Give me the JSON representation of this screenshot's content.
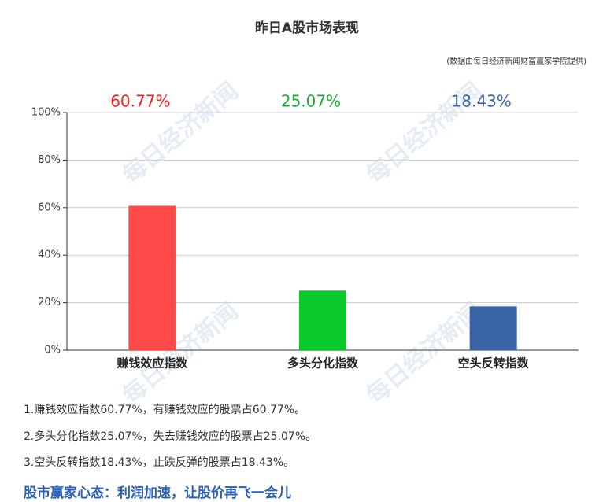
{
  "chart_data": {
    "type": "bar",
    "title": "昨日A股市场表现",
    "subtitle": "(数据由每日经济新闻财富赢家学院提供)",
    "categories": [
      "赚钱效应指数",
      "多头分化指数",
      "空头反转指数"
    ],
    "values": [
      60.77,
      25.07,
      18.43
    ],
    "value_labels": [
      "60.77%",
      "25.07%",
      "18.43%"
    ],
    "colors": [
      "#ff4a4a",
      "#0ac92b",
      "#3a64a8"
    ],
    "label_colors": [
      "#ff1a1a",
      "#1aab3a",
      "#3a64a8"
    ],
    "ylim": [
      0,
      100
    ],
    "yticks": [
      {
        "value": 0,
        "label": "0%"
      },
      {
        "value": 20,
        "label": "20%"
      },
      {
        "value": 40,
        "label": "40%"
      },
      {
        "value": 60,
        "label": "60%"
      },
      {
        "value": 80,
        "label": "80%"
      },
      {
        "value": 100,
        "label": "100%"
      }
    ],
    "grid": true
  },
  "watermark": "每日经济新闻",
  "notes": [
    "1.赚钱效应指数60.77%，有赚钱效应的股票占60.77%。",
    "2.多头分化指数25.07%，失去赚钱效应的股票占25.07%。",
    "3.空头反转指数18.43%，止跌反弹的股票占18.43%。"
  ],
  "headline": "股市赢家心态：利润加速，让股价再飞一会儿"
}
